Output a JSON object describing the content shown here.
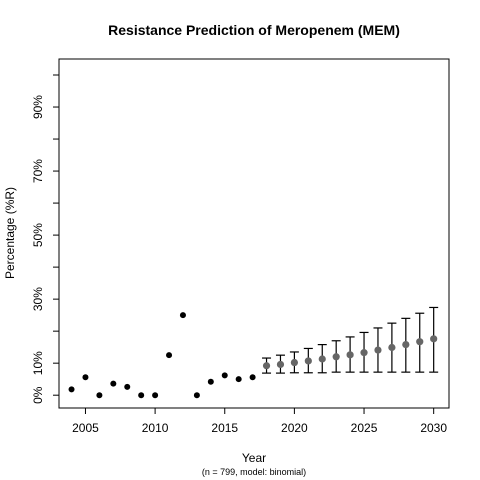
{
  "chart_data": {
    "type": "scatter",
    "title": "Resistance Prediction of Meropenem (MEM)",
    "xlabel": "Year",
    "ylabel": "Percentage (%R)",
    "caption": "(n = 799, model: binomial)",
    "xlim": [
      2003.1,
      2031.1
    ],
    "ylim": [
      -4,
      105
    ],
    "x_ticks": [
      2005,
      2010,
      2015,
      2020,
      2025,
      2030
    ],
    "y_ticks": [
      0,
      10,
      20,
      30,
      40,
      50,
      60,
      70,
      80,
      90,
      100
    ],
    "y_tick_labels": [
      {
        "value": 0,
        "label": "0%"
      },
      {
        "value": 10,
        "label": "10%"
      },
      {
        "value": 30,
        "label": "30%"
      },
      {
        "value": 50,
        "label": "50%"
      },
      {
        "value": 70,
        "label": "70%"
      },
      {
        "value": 90,
        "label": "90%"
      }
    ],
    "colors": {
      "observed": "#000000",
      "predicted": "#666666",
      "error_bar": "#000000"
    },
    "series": [
      {
        "kind": "observed",
        "points": [
          {
            "x": 2004,
            "y": 1.8
          },
          {
            "x": 2005,
            "y": 5.6
          },
          {
            "x": 2006,
            "y": 0
          },
          {
            "x": 2007,
            "y": 3.6
          },
          {
            "x": 2008,
            "y": 2.6
          },
          {
            "x": 2009,
            "y": 0
          },
          {
            "x": 2010,
            "y": 0
          },
          {
            "x": 2011,
            "y": 12.5
          },
          {
            "x": 2012,
            "y": 25
          },
          {
            "x": 2013,
            "y": 0
          },
          {
            "x": 2014,
            "y": 4.2
          },
          {
            "x": 2015,
            "y": 6.2
          },
          {
            "x": 2016,
            "y": 5
          },
          {
            "x": 2017,
            "y": 5.6
          }
        ]
      },
      {
        "kind": "predicted",
        "points": [
          {
            "x": 2018,
            "y": 9.2,
            "lower": 6.9,
            "upper": 11.6
          },
          {
            "x": 2019,
            "y": 9.6,
            "lower": 6.9,
            "upper": 12.5
          },
          {
            "x": 2020,
            "y": 10.2,
            "lower": 7.0,
            "upper": 13.5
          },
          {
            "x": 2021,
            "y": 10.7,
            "lower": 7.0,
            "upper": 14.6
          },
          {
            "x": 2022,
            "y": 11.3,
            "lower": 7.0,
            "upper": 15.8
          },
          {
            "x": 2023,
            "y": 12.0,
            "lower": 7.2,
            "upper": 17.0
          },
          {
            "x": 2024,
            "y": 12.6,
            "lower": 7.2,
            "upper": 18.2
          },
          {
            "x": 2025,
            "y": 13.3,
            "lower": 7.2,
            "upper": 19.6
          },
          {
            "x": 2026,
            "y": 14.1,
            "lower": 7.2,
            "upper": 21.0
          },
          {
            "x": 2027,
            "y": 14.9,
            "lower": 7.2,
            "upper": 22.5
          },
          {
            "x": 2028,
            "y": 15.8,
            "lower": 7.2,
            "upper": 24.0
          },
          {
            "x": 2029,
            "y": 16.7,
            "lower": 7.2,
            "upper": 25.6
          },
          {
            "x": 2030,
            "y": 17.6,
            "lower": 7.2,
            "upper": 27.4
          }
        ]
      }
    ]
  }
}
